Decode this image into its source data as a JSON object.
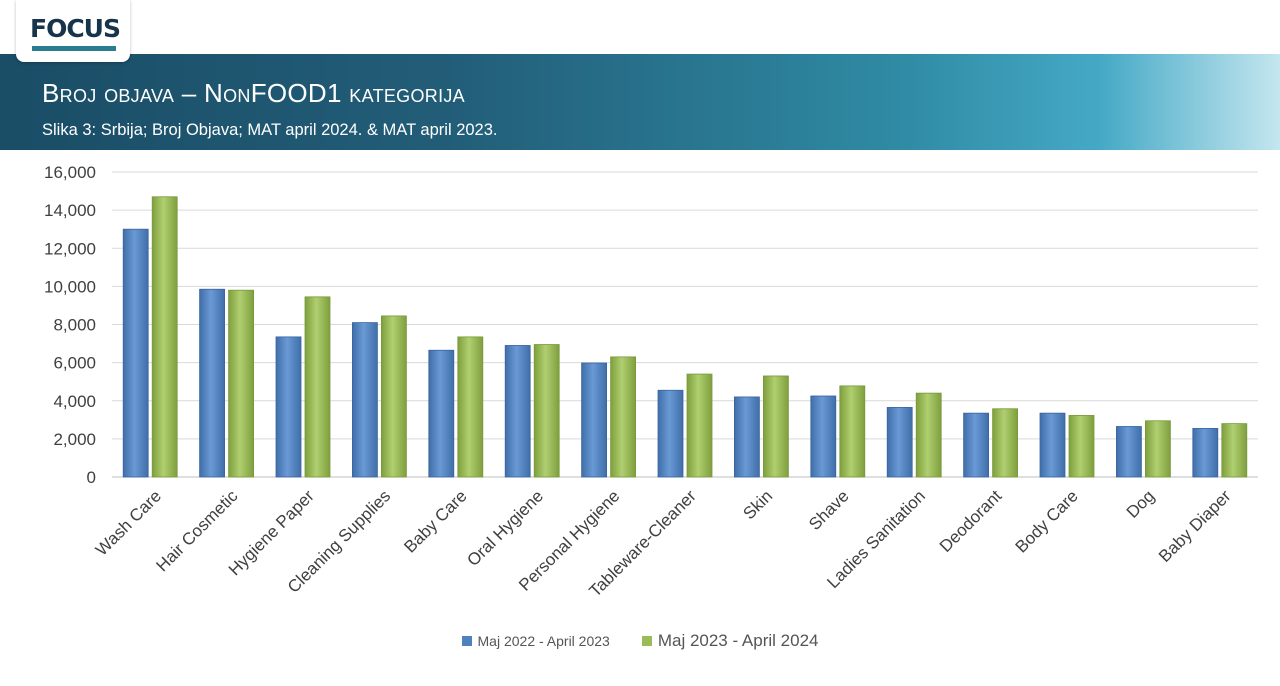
{
  "header": {
    "logo": "FOCUS",
    "title": "Broj objava – NonFOOD1 kategorija",
    "subtitle": "Slika 3: Srbija; Broj Objava; MAT april 2024. & MAT april 2023."
  },
  "colors": {
    "series_0": "#4f81bd",
    "series_1": "#9bbb59",
    "banner": "#1a4d66"
  },
  "chart_data": {
    "type": "bar",
    "categories": [
      "Wash Care",
      "Hair Cosmetic",
      "Hygiene Paper",
      "Cleaning Supplies",
      "Baby Care",
      "Oral Hygiene",
      "Personal Hygiene",
      "Tableware-Cleaner",
      "Skin",
      "Shave",
      "Ladies Sanitation",
      "Deodorant",
      "Body Care",
      "Dog",
      "Baby Diaper"
    ],
    "series": [
      {
        "name": "Maj 2022 - April 2023",
        "values": [
          13000,
          9850,
          7350,
          8100,
          6650,
          6900,
          5980,
          4550,
          4200,
          4250,
          3650,
          3350,
          3350,
          2650,
          2550
        ]
      },
      {
        "name": "Maj 2023 - April 2024",
        "values": [
          14700,
          9800,
          9450,
          8450,
          7350,
          6950,
          6300,
          5400,
          5300,
          4780,
          4400,
          3580,
          3230,
          2950,
          2800
        ]
      }
    ],
    "y_ticks": [
      "0",
      "2,000",
      "4,000",
      "6,000",
      "8,000",
      "10,000",
      "12,000",
      "14,000",
      "16,000"
    ],
    "ylim": [
      0,
      16000
    ],
    "grid": true,
    "legend_position": "bottom"
  }
}
